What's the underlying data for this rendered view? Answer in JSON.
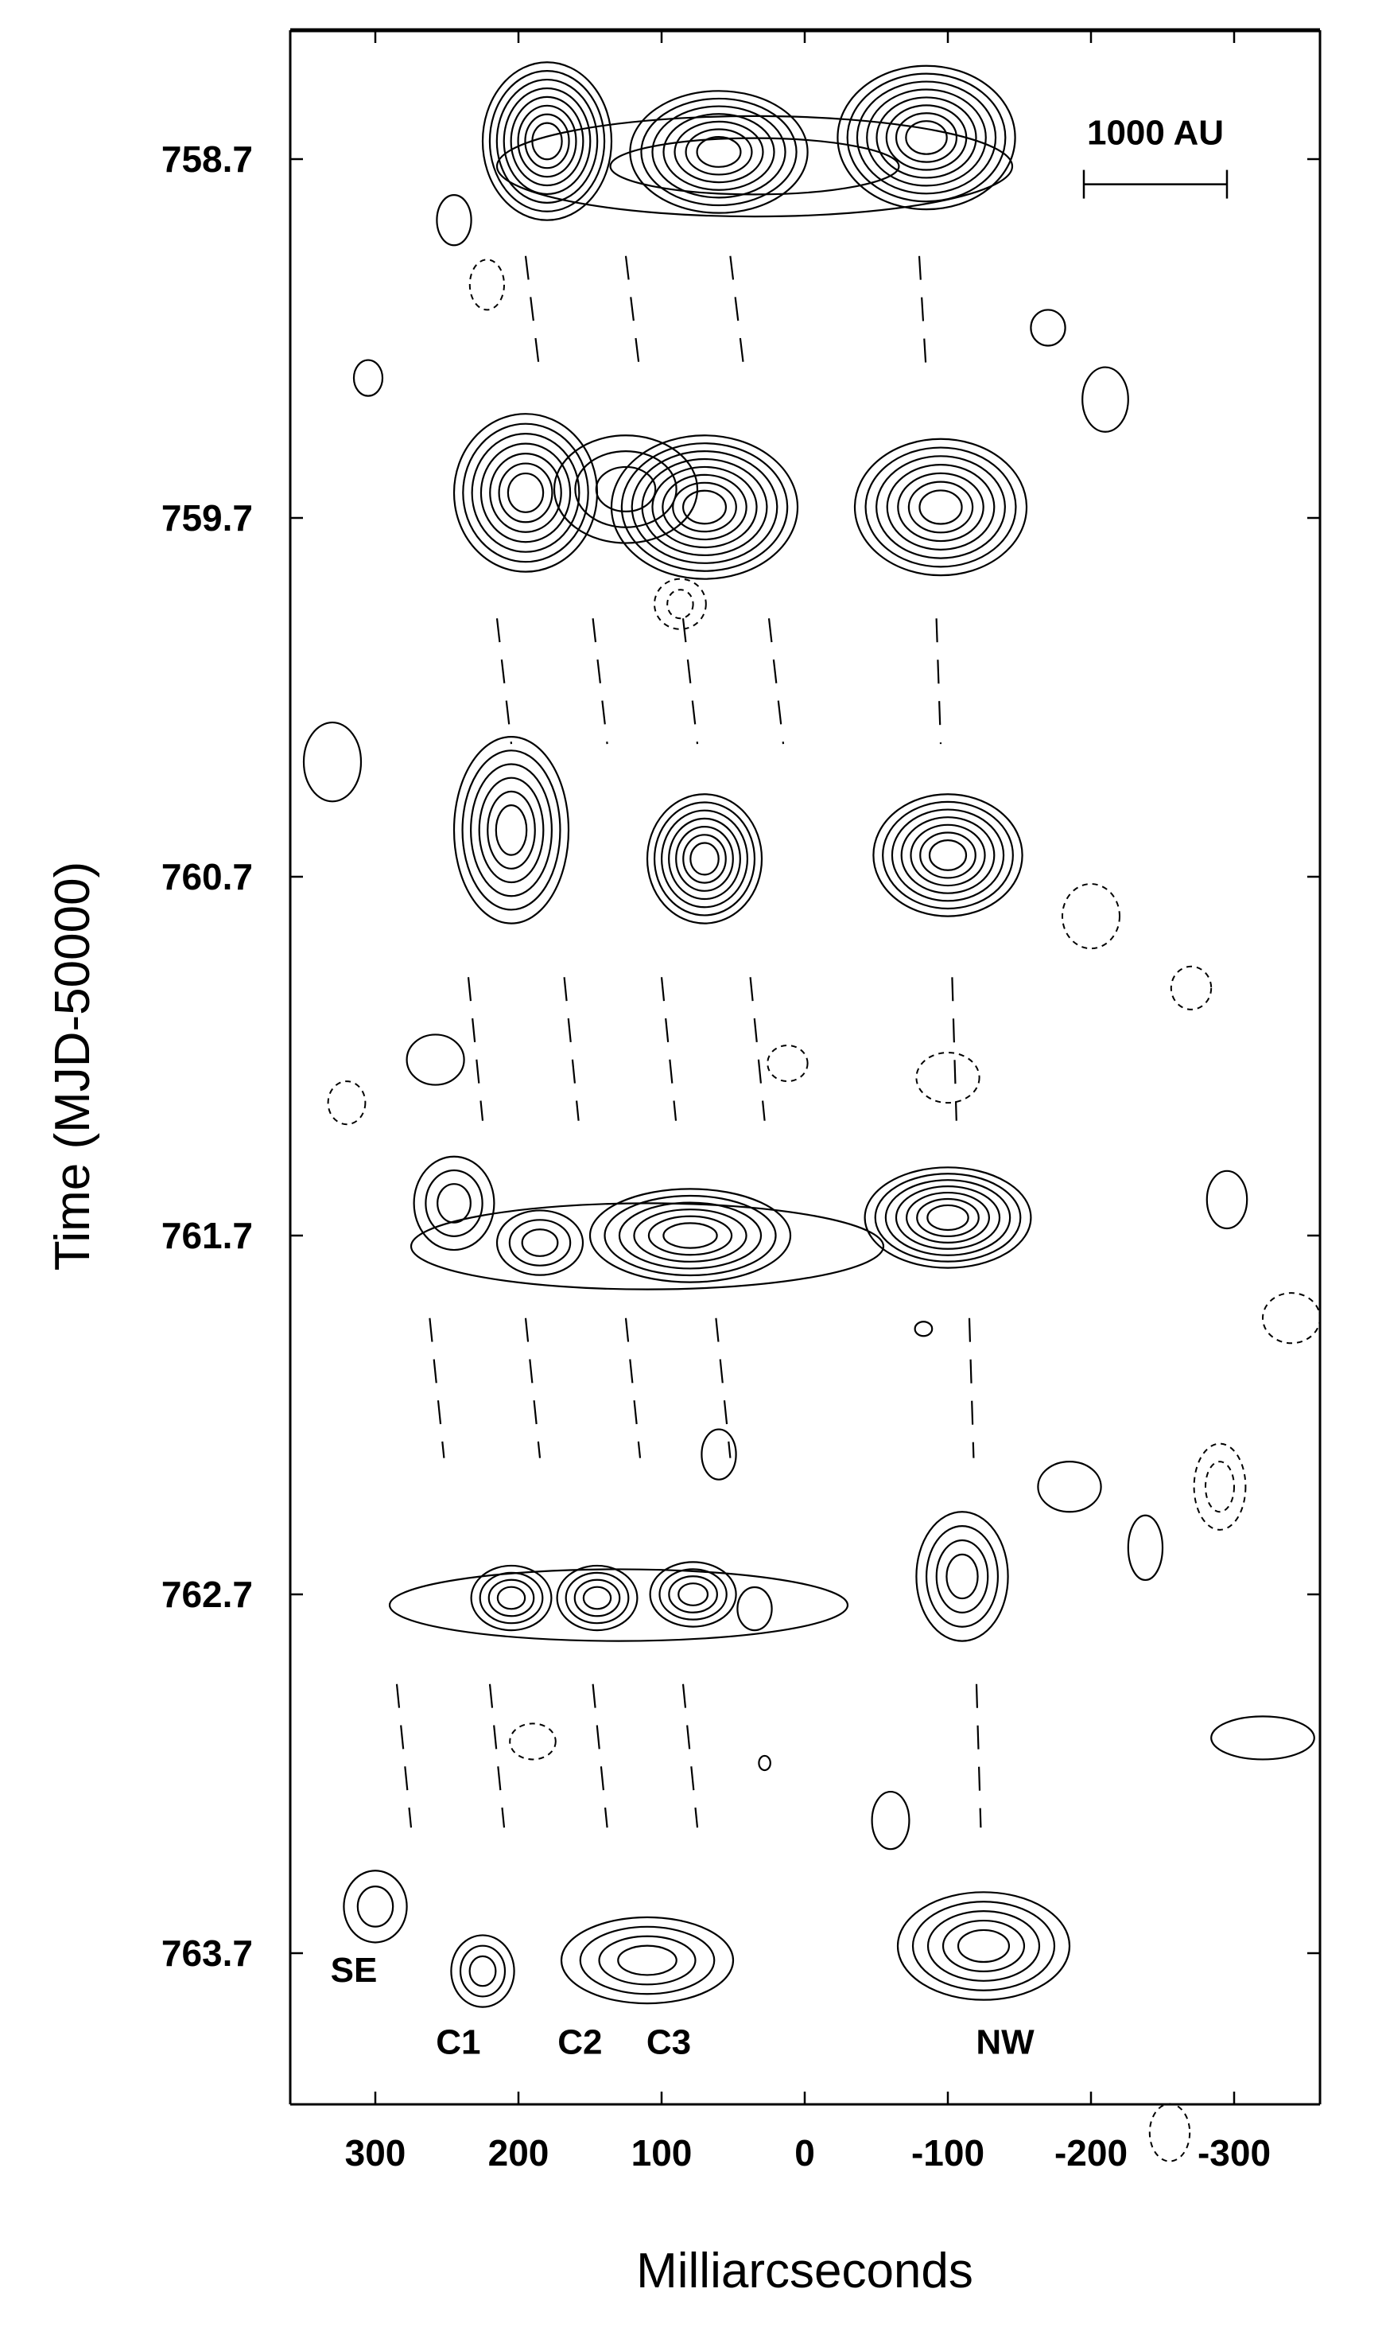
{
  "chart_data": {
    "type": "contour",
    "title": "",
    "xlabel": "Milliarcseconds",
    "ylabel": "Time (MJD-50000)",
    "xlim": [
      360,
      -360
    ],
    "ylim": [
      764.72,
      758.05
    ],
    "x_ticks": [
      300,
      200,
      100,
      0,
      -100,
      -200,
      -300
    ],
    "x_tick_labels": [
      "300",
      "200",
      "100",
      "0",
      "-100",
      "-200",
      "-300"
    ],
    "y_ticks": [
      758.7,
      759.7,
      760.7,
      761.7,
      762.7,
      763.7
    ],
    "y_tick_labels": [
      "758.7",
      "759.7",
      "760.7",
      "761.7",
      "762.7",
      "763.7"
    ],
    "scale_bar": {
      "label": "1000 AU",
      "x_from": -195,
      "x_to": -295,
      "y": 758.77
    },
    "component_labels": [
      {
        "text": "SE",
        "x": 315,
        "y": 763.78
      },
      {
        "text": "C1",
        "x": 242,
        "y": 763.98
      },
      {
        "text": "C2",
        "x": 157,
        "y": 763.98
      },
      {
        "text": "C3",
        "x": 95,
        "y": 763.98
      },
      {
        "text": "NW",
        "x": -140,
        "y": 763.98
      }
    ],
    "epochs": [
      {
        "time": 758.7,
        "sources": [
          {
            "x": 180,
            "y": 758.65,
            "rx": 45,
            "ry": 0.22,
            "levels": 8
          },
          {
            "x": 60,
            "y": 758.68,
            "rx": 62,
            "ry": 0.17,
            "levels": 7
          },
          {
            "x": -85,
            "y": 758.64,
            "rx": 62,
            "ry": 0.2,
            "levels": 8
          },
          {
            "x": 35,
            "y": 758.72,
            "rx": 180,
            "ry": 0.14,
            "levels": 2
          }
        ]
      },
      {
        "time": 759.7,
        "sources": [
          {
            "x": 195,
            "y": 759.63,
            "rx": 50,
            "ry": 0.22,
            "levels": 7
          },
          {
            "x": 70,
            "y": 759.67,
            "rx": 65,
            "ry": 0.2,
            "levels": 8
          },
          {
            "x": 125,
            "y": 759.62,
            "rx": 50,
            "ry": 0.15,
            "levels": 3
          },
          {
            "x": -95,
            "y": 759.67,
            "rx": 60,
            "ry": 0.19,
            "levels": 7
          }
        ]
      },
      {
        "time": 760.7,
        "sources": [
          {
            "x": 205,
            "y": 760.57,
            "rx": 40,
            "ry": 0.26,
            "levels": 6
          },
          {
            "x": 70,
            "y": 760.65,
            "rx": 40,
            "ry": 0.18,
            "levels": 7
          },
          {
            "x": -100,
            "y": 760.64,
            "rx": 52,
            "ry": 0.17,
            "levels": 7
          }
        ]
      },
      {
        "time": 761.7,
        "sources": [
          {
            "x": 245,
            "y": 761.61,
            "rx": 28,
            "ry": 0.13,
            "levels": 3
          },
          {
            "x": 185,
            "y": 761.72,
            "rx": 30,
            "ry": 0.09,
            "levels": 3
          },
          {
            "x": 80,
            "y": 761.7,
            "rx": 70,
            "ry": 0.13,
            "levels": 6
          },
          {
            "x": -100,
            "y": 761.65,
            "rx": 58,
            "ry": 0.14,
            "levels": 7
          },
          {
            "x": 110,
            "y": 761.73,
            "rx": 165,
            "ry": 0.12,
            "levels": 1
          }
        ]
      },
      {
        "time": 762.7,
        "sources": [
          {
            "x": 205,
            "y": 762.71,
            "rx": 28,
            "ry": 0.09,
            "levels": 4
          },
          {
            "x": 145,
            "y": 762.71,
            "rx": 28,
            "ry": 0.09,
            "levels": 4
          },
          {
            "x": 78,
            "y": 762.7,
            "rx": 30,
            "ry": 0.09,
            "levels": 4
          },
          {
            "x": -110,
            "y": 762.65,
            "rx": 32,
            "ry": 0.18,
            "levels": 4
          },
          {
            "x": 35,
            "y": 762.74,
            "rx": 12,
            "ry": 0.06,
            "levels": 1
          },
          {
            "x": 130,
            "y": 762.73,
            "rx": 160,
            "ry": 0.1,
            "levels": 1
          }
        ]
      },
      {
        "time": 763.7,
        "sources": [
          {
            "x": 300,
            "y": 763.57,
            "rx": 22,
            "ry": 0.1,
            "levels": 2
          },
          {
            "x": 225,
            "y": 763.75,
            "rx": 22,
            "ry": 0.1,
            "levels": 3
          },
          {
            "x": 110,
            "y": 763.72,
            "rx": 60,
            "ry": 0.12,
            "levels": 4
          },
          {
            "x": -125,
            "y": 763.68,
            "rx": 60,
            "ry": 0.15,
            "levels": 5
          }
        ]
      }
    ],
    "isolated_contours": [
      {
        "x": 245,
        "y": 758.87,
        "rx": 12,
        "ry": 0.07,
        "negative": false
      },
      {
        "x": 222,
        "y": 759.05,
        "rx": 12,
        "ry": 0.07,
        "negative": true
      },
      {
        "x": 305,
        "y": 759.31,
        "rx": 10,
        "ry": 0.05,
        "negative": false
      },
      {
        "x": -170,
        "y": 759.17,
        "rx": 12,
        "ry": 0.05,
        "negative": false
      },
      {
        "x": -210,
        "y": 759.37,
        "rx": 16,
        "ry": 0.09,
        "negative": false
      },
      {
        "x": 330,
        "y": 760.38,
        "rx": 20,
        "ry": 0.11,
        "negative": false
      },
      {
        "x": 87,
        "y": 759.94,
        "rx": 18,
        "ry": 0.07,
        "negative": true
      },
      {
        "x": 87,
        "y": 759.94,
        "rx": 9,
        "ry": 0.04,
        "negative": true
      },
      {
        "x": -200,
        "y": 760.81,
        "rx": 20,
        "ry": 0.09,
        "negative": true
      },
      {
        "x": -270,
        "y": 761.01,
        "rx": 14,
        "ry": 0.06,
        "negative": true
      },
      {
        "x": 258,
        "y": 761.21,
        "rx": 20,
        "ry": 0.07,
        "negative": false
      },
      {
        "x": 320,
        "y": 761.33,
        "rx": 13,
        "ry": 0.06,
        "negative": true
      },
      {
        "x": 12,
        "y": 761.22,
        "rx": 14,
        "ry": 0.05,
        "negative": true
      },
      {
        "x": -100,
        "y": 761.26,
        "rx": 22,
        "ry": 0.07,
        "negative": true
      },
      {
        "x": -295,
        "y": 761.6,
        "rx": 14,
        "ry": 0.08,
        "negative": false
      },
      {
        "x": -340,
        "y": 761.93,
        "rx": 20,
        "ry": 0.07,
        "negative": true
      },
      {
        "x": -83,
        "y": 761.96,
        "rx": 6,
        "ry": 0.02,
        "negative": false
      },
      {
        "x": 60,
        "y": 762.31,
        "rx": 12,
        "ry": 0.07,
        "negative": false
      },
      {
        "x": -185,
        "y": 762.4,
        "rx": 22,
        "ry": 0.07,
        "negative": false
      },
      {
        "x": -238,
        "y": 762.57,
        "rx": 12,
        "ry": 0.09,
        "negative": false
      },
      {
        "x": -290,
        "y": 762.4,
        "rx": 18,
        "ry": 0.12,
        "negative": true
      },
      {
        "x": -290,
        "y": 762.4,
        "rx": 10,
        "ry": 0.07,
        "negative": true
      },
      {
        "x": 190,
        "y": 763.11,
        "rx": 16,
        "ry": 0.05,
        "negative": true
      },
      {
        "x": 28,
        "y": 763.17,
        "rx": 4,
        "ry": 0.02,
        "negative": false
      },
      {
        "x": -60,
        "y": 763.33,
        "rx": 13,
        "ry": 0.08,
        "negative": false
      },
      {
        "x": -320,
        "y": 763.1,
        "rx": 36,
        "ry": 0.06,
        "negative": false
      },
      {
        "x": -255,
        "y": 764.2,
        "rx": 14,
        "ry": 0.08,
        "negative": true
      }
    ],
    "tracks": [
      {
        "from": [
          195,
          758.97
        ],
        "to": [
          185,
          759.3
        ]
      },
      {
        "from": [
          125,
          758.97
        ],
        "to": [
          115,
          759.3
        ]
      },
      {
        "from": [
          52,
          758.97
        ],
        "to": [
          42,
          759.3
        ]
      },
      {
        "from": [
          -80,
          758.97
        ],
        "to": [
          -85,
          759.3
        ]
      },
      {
        "from": [
          215,
          759.98
        ],
        "to": [
          205,
          760.33
        ]
      },
      {
        "from": [
          148,
          759.98
        ],
        "to": [
          138,
          760.33
        ]
      },
      {
        "from": [
          85,
          759.98
        ],
        "to": [
          75,
          760.33
        ]
      },
      {
        "from": [
          25,
          759.98
        ],
        "to": [
          15,
          760.33
        ]
      },
      {
        "from": [
          -92,
          759.98
        ],
        "to": [
          -95,
          760.33
        ]
      },
      {
        "from": [
          235,
          760.98
        ],
        "to": [
          225,
          761.38
        ]
      },
      {
        "from": [
          168,
          760.98
        ],
        "to": [
          158,
          761.38
        ]
      },
      {
        "from": [
          100,
          760.98
        ],
        "to": [
          90,
          761.38
        ]
      },
      {
        "from": [
          38,
          760.98
        ],
        "to": [
          28,
          761.38
        ]
      },
      {
        "from": [
          -103,
          760.98
        ],
        "to": [
          -106,
          761.38
        ]
      },
      {
        "from": [
          262,
          761.93
        ],
        "to": [
          252,
          762.32
        ]
      },
      {
        "from": [
          195,
          761.93
        ],
        "to": [
          185,
          762.32
        ]
      },
      {
        "from": [
          125,
          761.93
        ],
        "to": [
          115,
          762.32
        ]
      },
      {
        "from": [
          62,
          761.93
        ],
        "to": [
          52,
          762.32
        ]
      },
      {
        "from": [
          -115,
          761.93
        ],
        "to": [
          -118,
          762.32
        ]
      },
      {
        "from": [
          285,
          762.95
        ],
        "to": [
          275,
          763.35
        ]
      },
      {
        "from": [
          220,
          762.95
        ],
        "to": [
          210,
          763.35
        ]
      },
      {
        "from": [
          148,
          762.95
        ],
        "to": [
          138,
          763.35
        ]
      },
      {
        "from": [
          85,
          762.95
        ],
        "to": [
          75,
          763.35
        ]
      },
      {
        "from": [
          -120,
          762.95
        ],
        "to": [
          -123,
          763.35
        ]
      }
    ]
  }
}
